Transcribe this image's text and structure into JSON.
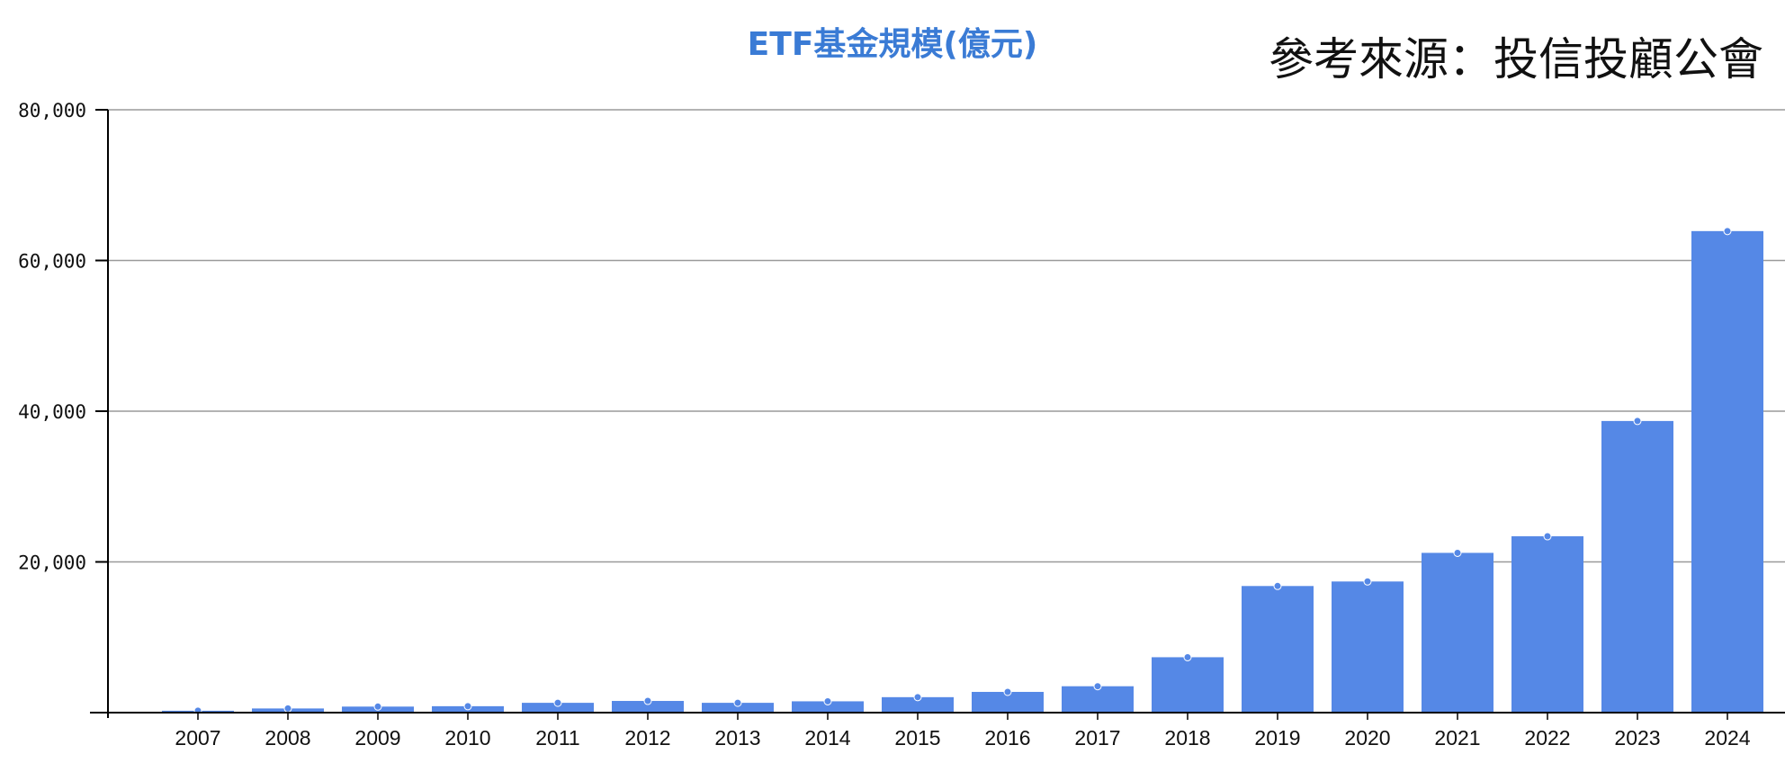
{
  "chart_data": {
    "type": "bar",
    "title": "ETF基金規模(億元)",
    "source_note": "參考來源：投信投顧公會",
    "categories": [
      "2007",
      "2008",
      "2009",
      "2010",
      "2011",
      "2012",
      "2013",
      "2014",
      "2015",
      "2016",
      "2017",
      "2018",
      "2019",
      "2020",
      "2021",
      "2022",
      "2023",
      "2024"
    ],
    "values": [
      250,
      550,
      800,
      850,
      1300,
      1550,
      1300,
      1500,
      2050,
      2750,
      3500,
      7350,
      16800,
      17400,
      21200,
      23400,
      38700,
      63900
    ],
    "ylim": [
      0,
      80000
    ],
    "yticks": [
      "80,000",
      "60,000",
      "40,000",
      "20,000"
    ],
    "ytick_values": [
      80000,
      60000,
      40000,
      20000
    ],
    "grid": true,
    "legend": "none",
    "colors": {
      "bar": "#5588e6",
      "title": "#3a7bd5",
      "grid": "#9a9a9a",
      "axis": "#000000",
      "text": "#111111"
    }
  }
}
